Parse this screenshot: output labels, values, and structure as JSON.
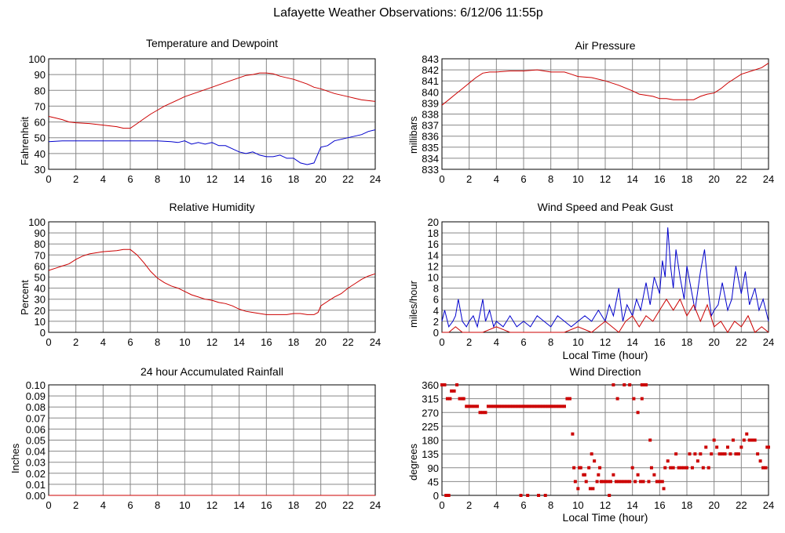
{
  "title": "Lafayette Weather Observations: 6/12/06 11:55p",
  "colors": {
    "temperature": "#cc0000",
    "dewpoint": "#0000cc",
    "grid": "#888888"
  },
  "chart_data": [
    {
      "id": "temp",
      "type": "line",
      "title": "Temperature and Dewpoint",
      "xlabel": "",
      "ylabel": "Fahrenheit",
      "xlim": [
        0,
        24
      ],
      "ylim": [
        30,
        100
      ],
      "xticks": [
        0,
        2,
        4,
        6,
        8,
        10,
        12,
        14,
        16,
        18,
        20,
        22,
        24
      ],
      "yticks": [
        30,
        40,
        50,
        60,
        70,
        80,
        90,
        100
      ],
      "grid": true,
      "series": [
        {
          "color": "#cc0000",
          "x": [
            0,
            0.5,
            1,
            1.5,
            2,
            3,
            4,
            5,
            5.5,
            6,
            6.5,
            7,
            7.5,
            8,
            8.5,
            9,
            9.5,
            10,
            10.5,
            11,
            11.5,
            12,
            12.5,
            13,
            13.5,
            14,
            14.5,
            15,
            15.5,
            16,
            16.5,
            17,
            17.5,
            18,
            18.5,
            19,
            19.5,
            20,
            20.5,
            21,
            21.5,
            22,
            22.5,
            23,
            23.5,
            24
          ],
          "y": [
            63.5,
            62.5,
            61.5,
            60,
            59.5,
            59,
            58,
            57,
            56,
            56,
            59,
            62,
            65,
            67.5,
            70,
            72,
            74,
            76,
            77.5,
            79,
            80.5,
            82,
            83.5,
            85,
            86.5,
            88,
            89.5,
            90,
            91,
            91,
            90.5,
            89,
            88,
            87,
            85.5,
            84,
            82,
            81,
            79.5,
            78,
            77,
            76,
            75,
            74,
            73.5,
            73
          ]
        },
        {
          "color": "#0000cc",
          "x": [
            0,
            1,
            2,
            3,
            4,
            5,
            6,
            7,
            8,
            9,
            9.5,
            10,
            10.5,
            11,
            11.5,
            12,
            12.5,
            13,
            13.5,
            14,
            14.5,
            15,
            15.5,
            16,
            16.5,
            17,
            17.5,
            18,
            18.5,
            19,
            19.5,
            19.8,
            20,
            20.5,
            21,
            22,
            23,
            23.5,
            24
          ],
          "y": [
            47.5,
            48,
            48,
            48,
            48,
            48,
            48,
            48,
            48,
            47.5,
            47,
            48,
            46,
            47,
            46,
            47,
            45,
            45,
            43,
            41,
            40,
            41,
            39,
            38,
            38,
            39,
            37,
            37,
            34,
            33,
            34,
            40,
            44,
            45,
            48,
            50,
            52,
            54,
            55
          ]
        }
      ]
    },
    {
      "id": "pressure",
      "type": "line",
      "title": "Air Pressure",
      "xlabel": "",
      "ylabel": "millibars",
      "xlim": [
        0,
        24
      ],
      "ylim": [
        833,
        843
      ],
      "xticks": [
        0,
        2,
        4,
        6,
        8,
        10,
        12,
        14,
        16,
        18,
        20,
        22,
        24
      ],
      "yticks": [
        833,
        834,
        835,
        836,
        837,
        838,
        839,
        840,
        841,
        842,
        843
      ],
      "grid": true,
      "series": [
        {
          "color": "#cc0000",
          "x": [
            0,
            0.5,
            1,
            1.5,
            2,
            2.5,
            3,
            3.5,
            4,
            5,
            6,
            7,
            8,
            9,
            9.5,
            10,
            11,
            12,
            13,
            14,
            14.5,
            15,
            15.5,
            16,
            16.5,
            17,
            18,
            18.5,
            19,
            19.5,
            20,
            20.5,
            21,
            22,
            23,
            23.5,
            24
          ],
          "y": [
            838.8,
            839.3,
            839.8,
            840.3,
            840.8,
            841.3,
            841.7,
            841.8,
            841.8,
            841.9,
            841.9,
            842,
            841.8,
            841.8,
            841.6,
            841.4,
            841.3,
            841,
            840.6,
            840.1,
            839.8,
            839.7,
            839.6,
            839.4,
            839.4,
            839.3,
            839.3,
            839.3,
            839.6,
            839.8,
            839.9,
            840.3,
            840.8,
            841.6,
            842,
            842.2,
            842.6
          ]
        }
      ]
    },
    {
      "id": "humidity",
      "type": "line",
      "title": "Relative Humidity",
      "xlabel": "",
      "ylabel": "Percent",
      "xlim": [
        0,
        24
      ],
      "ylim": [
        0,
        100
      ],
      "xticks": [
        0,
        2,
        4,
        6,
        8,
        10,
        12,
        14,
        16,
        18,
        20,
        22,
        24
      ],
      "yticks": [
        0,
        10,
        20,
        30,
        40,
        50,
        60,
        70,
        80,
        90,
        100
      ],
      "grid": true,
      "series": [
        {
          "color": "#cc0000",
          "x": [
            0,
            0.5,
            1,
            1.5,
            2,
            2.5,
            3,
            4,
            5,
            5.5,
            6,
            6.5,
            7,
            7.5,
            8,
            8.5,
            9,
            9.5,
            10,
            10.5,
            11,
            11.5,
            12,
            12.5,
            13,
            13.5,
            14,
            14.5,
            15,
            15.5,
            16,
            16.5,
            17,
            17.5,
            18,
            18.5,
            19,
            19.5,
            19.8,
            20,
            20.5,
            21,
            21.5,
            22,
            22.5,
            23,
            23.5,
            24
          ],
          "y": [
            56,
            58,
            60,
            62,
            66,
            69,
            71,
            73,
            74,
            75,
            75,
            70,
            63,
            55,
            49,
            45,
            42,
            40,
            37,
            34,
            32,
            30,
            29,
            27,
            26,
            24,
            21,
            19,
            18,
            17,
            16,
            16,
            16,
            16,
            17,
            17,
            16,
            16,
            18,
            24,
            28,
            32,
            35,
            40,
            44,
            48,
            51,
            53
          ]
        }
      ]
    },
    {
      "id": "wind",
      "type": "line",
      "title": "Wind Speed and Peak Gust",
      "xlabel": "Local Time (hour)",
      "ylabel": "miles/hour",
      "xlim": [
        0,
        24
      ],
      "ylim": [
        0,
        20
      ],
      "xticks": [
        0,
        2,
        4,
        6,
        8,
        10,
        12,
        14,
        16,
        18,
        20,
        22,
        24
      ],
      "yticks": [
        0,
        2,
        4,
        6,
        8,
        10,
        12,
        14,
        16,
        18,
        20
      ],
      "grid": true,
      "series": [
        {
          "color": "#0000cc",
          "x": [
            0,
            0.2,
            0.5,
            0.8,
            1,
            1.2,
            1.5,
            1.8,
            2,
            2.3,
            2.6,
            3,
            3.2,
            3.5,
            3.8,
            4,
            4.5,
            5,
            5.5,
            6,
            6.5,
            7,
            7.5,
            8,
            8.5,
            9,
            9.5,
            10,
            10.5,
            11,
            11.5,
            12,
            12.3,
            12.6,
            13,
            13.3,
            13.6,
            14,
            14.3,
            14.6,
            15,
            15.3,
            15.6,
            16,
            16.2,
            16.4,
            16.6,
            16.8,
            17,
            17.2,
            17.5,
            17.8,
            18,
            18.3,
            18.6,
            19,
            19.3,
            19.6,
            19.8,
            20,
            20.3,
            20.6,
            21,
            21.3,
            21.6,
            22,
            22.3,
            22.6,
            23,
            23.3,
            23.6,
            24
          ],
          "y": [
            2,
            4,
            1,
            2,
            3,
            6,
            2,
            1,
            2,
            3,
            1,
            6,
            2,
            4,
            1,
            2,
            1,
            3,
            1,
            2,
            1,
            3,
            2,
            1,
            3,
            2,
            1,
            2,
            3,
            2,
            4,
            2,
            5,
            3,
            8,
            2,
            5,
            3,
            6,
            4,
            9,
            5,
            10,
            7,
            13,
            10,
            19,
            12,
            8,
            15,
            10,
            6,
            12,
            8,
            4,
            11,
            15,
            7,
            3,
            4,
            5,
            9,
            4,
            6,
            12,
            7,
            11,
            5,
            8,
            4,
            6,
            2
          ]
        },
        {
          "color": "#cc0000",
          "x": [
            0,
            0.5,
            1,
            1.5,
            2,
            3,
            4,
            5,
            6,
            7,
            8,
            9,
            10,
            11,
            11.5,
            12,
            12.5,
            13,
            13.5,
            14,
            14.5,
            15,
            15.5,
            16,
            16.5,
            17,
            17.5,
            18,
            18.5,
            19,
            19.5,
            20,
            20.5,
            21,
            21.5,
            22,
            22.5,
            23,
            23.5,
            24
          ],
          "y": [
            0,
            0,
            1,
            0,
            0,
            0,
            1,
            0,
            0,
            0,
            0,
            0,
            1,
            0,
            1,
            2,
            1,
            0,
            2,
            3,
            1,
            3,
            2,
            4,
            6,
            4,
            6,
            3,
            5,
            2,
            5,
            1,
            2,
            0,
            2,
            1,
            3,
            0,
            1,
            0
          ]
        }
      ]
    },
    {
      "id": "rain",
      "type": "line",
      "title": "24 hour Accumulated Rainfall",
      "xlabel": "",
      "ylabel": "Inches",
      "xlim": [
        0,
        24
      ],
      "ylim": [
        0,
        0.1
      ],
      "xticks": [
        0,
        2,
        4,
        6,
        8,
        10,
        12,
        14,
        16,
        18,
        20,
        22,
        24
      ],
      "yticks": [
        "0.00",
        "0.01",
        "0.02",
        "0.03",
        "0.04",
        "0.05",
        "0.06",
        "0.07",
        "0.08",
        "0.09",
        "0.10"
      ],
      "grid": true,
      "series": [
        {
          "color": "#cc0000",
          "x": [
            0,
            24
          ],
          "y": [
            0,
            0
          ]
        }
      ]
    },
    {
      "id": "winddir",
      "type": "scatter",
      "title": "Wind Direction",
      "xlabel": "Local Time (hour)",
      "ylabel": "degrees",
      "xlim": [
        0,
        24
      ],
      "ylim": [
        0,
        360
      ],
      "xticks": [
        0,
        2,
        4,
        6,
        8,
        10,
        12,
        14,
        16,
        18,
        20,
        22,
        24
      ],
      "yticks": [
        0,
        45,
        90,
        135,
        180,
        225,
        270,
        315,
        360
      ],
      "grid": true,
      "series": [
        {
          "color": "#cc0000",
          "x": [
            0,
            0.2,
            0.4,
            0.6,
            0.3,
            0.5,
            0.7,
            0.9,
            1.1,
            1.3,
            1.5,
            1.6,
            1.8,
            2,
            2.2,
            2.4,
            2.6,
            2.8,
            3,
            3.2,
            3.4,
            3.6,
            3.8,
            4,
            4.2,
            4.4,
            4.6,
            4.8,
            5,
            5.2,
            5.4,
            5.6,
            5.8,
            6,
            6.2,
            6.4,
            6.6,
            6.8,
            7,
            7.2,
            7.4,
            7.6,
            7.8,
            8,
            8.2,
            8.4,
            8.6,
            8.8,
            9,
            9.2,
            9.4,
            5.8,
            6.3,
            7.1,
            7.6,
            9.6,
            9.8,
            10,
            10.2,
            10.4,
            10.6,
            10.8,
            11,
            11.2,
            11.4,
            11.6,
            11.8,
            12,
            12.2,
            12.4,
            12.6,
            12.8,
            13,
            13.2,
            13.4,
            13.6,
            13.8,
            14,
            14.2,
            14.4,
            14.6,
            14.8,
            15,
            12.6,
            12.9,
            13.4,
            13.8,
            14.1,
            14.4,
            14.7,
            14.9,
            15.2,
            15.4,
            15.6,
            15.8,
            16,
            16.2,
            16.4,
            16.6,
            16.8,
            17,
            17.2,
            17.4,
            17.6,
            17.8,
            18,
            18.2,
            18.4,
            18.6,
            18.8,
            19,
            19.2,
            19.4,
            19.6,
            19.8,
            20,
            20.2,
            20.4,
            20.6,
            20.8,
            21,
            21.2,
            21.4,
            21.6,
            21.8,
            22,
            22.2,
            22.4,
            22.6,
            22.8,
            23,
            23.2,
            23.4,
            23.6,
            23.8,
            24,
            9.7,
            10.1,
            10.5,
            11.1,
            11.7,
            12.3,
            16.3,
            15.3,
            14.7,
            10.9,
            11.5,
            23.9
          ],
          "y": [
            360,
            360,
            315,
            315,
            0,
            0,
            340,
            340,
            360,
            315,
            315,
            315,
            290,
            290,
            290,
            290,
            290,
            270,
            270,
            270,
            290,
            290,
            290,
            290,
            290,
            290,
            290,
            290,
            290,
            290,
            290,
            290,
            290,
            290,
            290,
            290,
            290,
            290,
            290,
            290,
            290,
            290,
            290,
            290,
            290,
            290,
            290,
            290,
            290,
            315,
            315,
            0,
            0,
            0,
            0,
            200,
            45,
            22,
            90,
            67,
            45,
            90,
            135,
            112,
            45,
            90,
            45,
            45,
            45,
            45,
            67,
            45,
            45,
            45,
            45,
            45,
            45,
            90,
            45,
            67,
            45,
            45,
            360,
            360,
            315,
            360,
            360,
            315,
            270,
            315,
            360,
            45,
            90,
            67,
            45,
            45,
            45,
            90,
            112,
            90,
            90,
            135,
            90,
            90,
            90,
            90,
            135,
            90,
            135,
            112,
            135,
            90,
            157,
            90,
            135,
            180,
            157,
            135,
            135,
            135,
            157,
            135,
            180,
            135,
            135,
            157,
            180,
            200,
            180,
            180,
            180,
            135,
            112,
            90,
            90,
            157,
            90,
            90,
            67,
            22,
            45,
            0,
            22,
            180,
            360,
            22,
            67,
            157
          ]
        }
      ]
    }
  ]
}
